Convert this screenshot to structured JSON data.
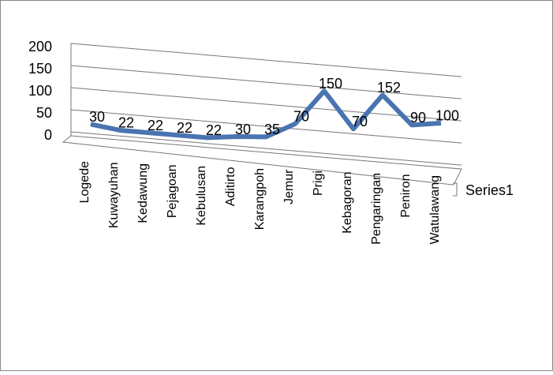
{
  "chart_data": {
    "type": "line",
    "categories": [
      "Logede",
      "Kuwayuhan",
      "Kedawung",
      "Pejagoan",
      "Kebulusan",
      "Aditirto",
      "Karangpoh",
      "Jemur",
      "Prigi",
      "Kebagoran",
      "Pengaringan",
      "Peniron",
      "Watulawang"
    ],
    "series": [
      {
        "name": "Series1",
        "color": "#4a74b0",
        "values": [
          30,
          22,
          22,
          22,
          22,
          30,
          35,
          70,
          150,
          70,
          152,
          90,
          100
        ]
      }
    ],
    "ylim": [
      0,
      200
    ],
    "yticks": [
      0,
      50,
      100,
      150,
      200
    ],
    "grid": true,
    "legend": "right"
  }
}
